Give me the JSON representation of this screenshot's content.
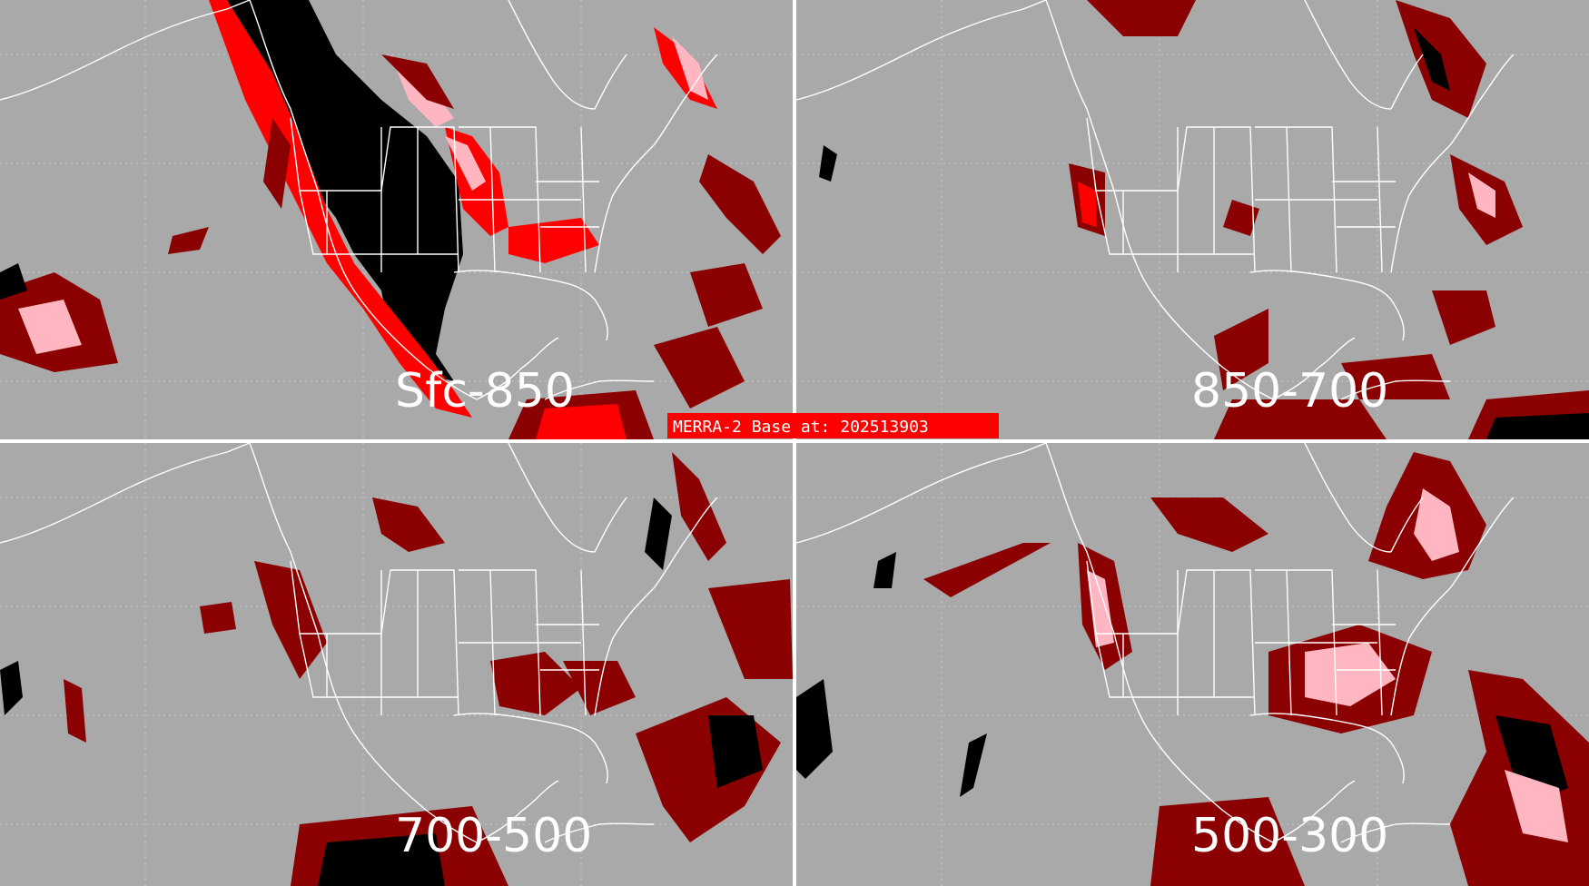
{
  "panels": [
    {
      "id": "sfc-850",
      "label": "Sfc-850"
    },
    {
      "id": "850-700",
      "label": "850-700"
    },
    {
      "id": "700-500",
      "label": "700-500"
    },
    {
      "id": "500-300",
      "label": "500-300"
    }
  ],
  "banner": {
    "text": "MERRA-2 Base at: 202513903"
  },
  "colors": {
    "background": "#a9a9a9",
    "divider": "#ffffff",
    "coast": "#ffffff",
    "dark_red": "#8b0000",
    "red": "#ff0000",
    "pink": "#ffb6c1",
    "black": "#000000",
    "banner": "#ff0000"
  }
}
